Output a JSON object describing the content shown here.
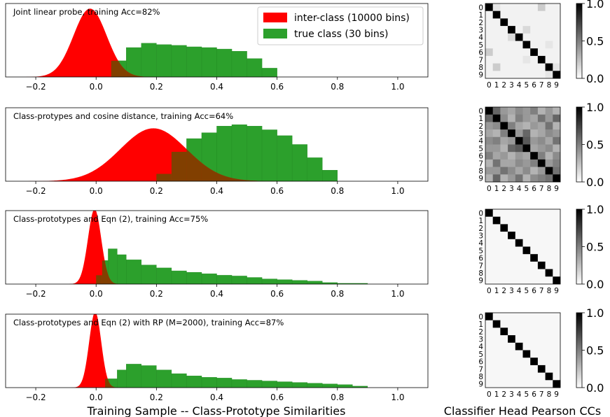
{
  "figure": {
    "left_xlabel": "Training Sample -- Class-Prototype Similarities",
    "right_xlabel": "Classifier Head Pearson CCs"
  },
  "legend": {
    "entries": [
      {
        "label": "inter-class (10000 bins)",
        "color": "#ff0000"
      },
      {
        "label": "true class (30 bins)",
        "color": "#2ca02c"
      }
    ]
  },
  "colors": {
    "inter": "#ff0000",
    "true": "#2ca02c",
    "overlap": "#6b4a00"
  },
  "chart_data": [
    {
      "type": "area",
      "title": "Joint linear probe, training Acc=82%",
      "xlim": [
        -0.3,
        1.1
      ],
      "xticks": [
        -0.2,
        0.0,
        0.2,
        0.4,
        0.6,
        0.8,
        1.0
      ],
      "xtick_labels": [
        "−0.2",
        "0.0",
        "0.2",
        "0.4",
        "0.6",
        "0.8",
        "1.0"
      ],
      "series": [
        {
          "name": "inter-class (10000 bins)",
          "kind": "density",
          "mu": -0.02,
          "sigma": 0.055,
          "peak": 0.93
        },
        {
          "name": "true class (30 bins)",
          "kind": "histogram",
          "bins": [
            0.05,
            0.1,
            0.15,
            0.2,
            0.25,
            0.3,
            0.35,
            0.4,
            0.45,
            0.5,
            0.55,
            0.6
          ],
          "heights": [
            0.22,
            0.4,
            0.46,
            0.44,
            0.43,
            0.41,
            0.4,
            0.38,
            0.35,
            0.25,
            0.12,
            0.03
          ]
        }
      ]
    },
    {
      "type": "area",
      "title": "Class-protypes and cosine distance, training Acc=64%",
      "xlim": [
        -0.3,
        1.1
      ],
      "xticks": [
        -0.2,
        0.0,
        0.2,
        0.4,
        0.6,
        0.8,
        1.0
      ],
      "xtick_labels": [
        "−0.2",
        "0.0",
        "0.2",
        "0.4",
        "0.6",
        "0.8",
        "1.0"
      ],
      "series": [
        {
          "name": "inter-class (10000 bins)",
          "kind": "density",
          "mu": 0.19,
          "sigma": 0.11,
          "peak": 0.72
        },
        {
          "name": "true class (30 bins)",
          "kind": "histogram",
          "bins": [
            0.2,
            0.25,
            0.3,
            0.35,
            0.4,
            0.45,
            0.5,
            0.55,
            0.6,
            0.65,
            0.7,
            0.75,
            0.8
          ],
          "heights": [
            0.1,
            0.4,
            0.58,
            0.66,
            0.75,
            0.77,
            0.75,
            0.7,
            0.62,
            0.5,
            0.32,
            0.15,
            0.05
          ]
        }
      ]
    },
    {
      "type": "area",
      "title": "Class-prototypes and Eqn (2), training Acc=75%",
      "xlim": [
        -0.3,
        1.1
      ],
      "xticks": [
        -0.2,
        0.0,
        0.2,
        0.4,
        0.6,
        0.8,
        1.0
      ],
      "xtick_labels": [
        "−0.2",
        "0.0",
        "0.2",
        "0.4",
        "0.6",
        "0.8",
        "1.0"
      ],
      "series": [
        {
          "name": "inter-class (10000 bins)",
          "kind": "density",
          "mu": -0.005,
          "sigma": 0.022,
          "peak": 1.02
        },
        {
          "name": "true class (30 bins)",
          "kind": "histogram",
          "bins": [
            0,
            0.02,
            0.04,
            0.07,
            0.1,
            0.15,
            0.2,
            0.25,
            0.3,
            0.35,
            0.4,
            0.45,
            0.5,
            0.55,
            0.6,
            0.65,
            0.7,
            0.75,
            0.8,
            0.9
          ],
          "heights": [
            0.12,
            0.32,
            0.48,
            0.4,
            0.33,
            0.26,
            0.22,
            0.18,
            0.16,
            0.14,
            0.12,
            0.11,
            0.09,
            0.07,
            0.06,
            0.05,
            0.04,
            0.02,
            0.01
          ]
        }
      ]
    },
    {
      "type": "area",
      "title": "Class-prototypes and Eqn (2) with RP (M=2000), training Acc=87%",
      "xlim": [
        -0.3,
        1.1
      ],
      "xticks": [
        -0.2,
        0.0,
        0.2,
        0.4,
        0.6,
        0.8,
        1.0
      ],
      "xtick_labels": [
        "−0.2",
        "0.0",
        "0.2",
        "0.4",
        "0.6",
        "0.8",
        "1.0"
      ],
      "series": [
        {
          "name": "inter-class (10000 bins)",
          "kind": "density",
          "mu": -0.003,
          "sigma": 0.02,
          "peak": 1.03
        },
        {
          "name": "true class (30 bins)",
          "kind": "histogram",
          "bins": [
            0.03,
            0.07,
            0.1,
            0.15,
            0.2,
            0.25,
            0.3,
            0.35,
            0.4,
            0.45,
            0.5,
            0.55,
            0.6,
            0.65,
            0.7,
            0.75,
            0.8,
            0.85,
            0.9
          ],
          "heights": [
            0.12,
            0.24,
            0.32,
            0.3,
            0.24,
            0.19,
            0.16,
            0.14,
            0.13,
            0.11,
            0.1,
            0.09,
            0.08,
            0.07,
            0.06,
            0.05,
            0.04,
            0.02
          ]
        }
      ]
    },
    {
      "type": "heatmap",
      "labels": [
        "0",
        "1",
        "2",
        "3",
        "4",
        "5",
        "6",
        "7",
        "8",
        "9"
      ],
      "colorbar_ticks": [
        "0.0",
        "0.5",
        "1.0"
      ],
      "range": [
        0,
        1
      ],
      "offdiag": [
        [
          0.1,
          0.05,
          0.05,
          0.05,
          0.05,
          0.05,
          0.2,
          0.05,
          0.05
        ],
        [
          0.05,
          0.05,
          0.05,
          0.05,
          0.05,
          0.05,
          0.05,
          0.05,
          0.05
        ],
        [
          0.05,
          0.05,
          0.05,
          0.05,
          0.05,
          0.05,
          0.05,
          0.05,
          0.05
        ],
        [
          0.05,
          0.05,
          0.05,
          0.05,
          0.15,
          0.05,
          0.05,
          0.05,
          0.05
        ],
        [
          0.05,
          0.05,
          0.05,
          0.15,
          0.05,
          0.05,
          0.05,
          0.05,
          0.05
        ],
        [
          0.05,
          0.05,
          0.05,
          0.05,
          0.05,
          0.05,
          0.05,
          0.1,
          0.05
        ],
        [
          0.2,
          0.05,
          0.05,
          0.05,
          0.05,
          0.05,
          0.05,
          0.05,
          0.05
        ],
        [
          0.05,
          0.05,
          0.05,
          0.05,
          0.05,
          0.1,
          0.05,
          0.05,
          0.05
        ],
        [
          0.05,
          0.2,
          0.05,
          0.05,
          0.05,
          0.05,
          0.05,
          0.05,
          0.1
        ],
        [
          0.05,
          0.05,
          0.05,
          0.05,
          0.05,
          0.05,
          0.05,
          0.05,
          0.1
        ]
      ]
    },
    {
      "type": "heatmap",
      "labels": [
        "0",
        "1",
        "2",
        "3",
        "4",
        "5",
        "6",
        "7",
        "8",
        "9"
      ],
      "colorbar_ticks": [
        "0.0",
        "0.5",
        "1.0"
      ],
      "range": [
        0,
        1
      ],
      "offdiag": [
        [
          0.6,
          0.4,
          0.35,
          0.45,
          0.4,
          0.5,
          0.3,
          0.4,
          0.3
        ],
        [
          0.6,
          0.45,
          0.3,
          0.5,
          0.4,
          0.35,
          0.55,
          0.4,
          0.6
        ],
        [
          0.4,
          0.45,
          0.5,
          0.35,
          0.3,
          0.4,
          0.35,
          0.55,
          0.3
        ],
        [
          0.35,
          0.3,
          0.5,
          0.4,
          0.6,
          0.3,
          0.35,
          0.45,
          0.4
        ],
        [
          0.45,
          0.5,
          0.35,
          0.4,
          0.65,
          0.4,
          0.45,
          0.35,
          0.55
        ],
        [
          0.4,
          0.4,
          0.3,
          0.6,
          0.65,
          0.35,
          0.4,
          0.45,
          0.3
        ],
        [
          0.5,
          0.35,
          0.4,
          0.3,
          0.4,
          0.35,
          0.5,
          0.3,
          0.45
        ],
        [
          0.3,
          0.55,
          0.35,
          0.35,
          0.45,
          0.4,
          0.5,
          0.4,
          0.5
        ],
        [
          0.4,
          0.4,
          0.55,
          0.45,
          0.35,
          0.45,
          0.3,
          0.4,
          0.55
        ],
        [
          0.3,
          0.6,
          0.3,
          0.4,
          0.55,
          0.3,
          0.45,
          0.5,
          0.55
        ]
      ]
    },
    {
      "type": "heatmap",
      "labels": [
        "0",
        "1",
        "2",
        "3",
        "4",
        "5",
        "6",
        "7",
        "8",
        "9"
      ],
      "colorbar_ticks": [
        "0.0",
        "0.5",
        "1.0"
      ],
      "range": [
        0,
        1
      ],
      "offdiag": [
        [
          0.03,
          0.03,
          0.03,
          0.03,
          0.03,
          0.03,
          0.03,
          0.03,
          0.03
        ],
        [
          0.03,
          0.03,
          0.03,
          0.03,
          0.03,
          0.03,
          0.03,
          0.03,
          0.03
        ],
        [
          0.03,
          0.03,
          0.03,
          0.03,
          0.03,
          0.03,
          0.03,
          0.03,
          0.03
        ],
        [
          0.03,
          0.03,
          0.03,
          0.03,
          0.03,
          0.03,
          0.03,
          0.03,
          0.03
        ],
        [
          0.03,
          0.03,
          0.03,
          0.03,
          0.03,
          0.03,
          0.03,
          0.03,
          0.03
        ],
        [
          0.03,
          0.03,
          0.03,
          0.03,
          0.03,
          0.03,
          0.03,
          0.03,
          0.03
        ],
        [
          0.03,
          0.03,
          0.03,
          0.03,
          0.03,
          0.03,
          0.03,
          0.03,
          0.03
        ],
        [
          0.03,
          0.03,
          0.03,
          0.03,
          0.03,
          0.03,
          0.03,
          0.03,
          0.03
        ],
        [
          0.03,
          0.03,
          0.03,
          0.03,
          0.03,
          0.03,
          0.03,
          0.03,
          0.03
        ],
        [
          0.03,
          0.03,
          0.03,
          0.03,
          0.03,
          0.03,
          0.03,
          0.03,
          0.03
        ]
      ]
    },
    {
      "type": "heatmap",
      "labels": [
        "0",
        "1",
        "2",
        "3",
        "4",
        "5",
        "6",
        "7",
        "8",
        "9"
      ],
      "colorbar_ticks": [
        "0.0",
        "0.5",
        "1.0"
      ],
      "range": [
        0,
        1
      ],
      "offdiag": [
        [
          0.03,
          0.03,
          0.03,
          0.03,
          0.03,
          0.03,
          0.03,
          0.03,
          0.03
        ],
        [
          0.03,
          0.03,
          0.03,
          0.03,
          0.03,
          0.03,
          0.03,
          0.03,
          0.03
        ],
        [
          0.03,
          0.03,
          0.03,
          0.03,
          0.03,
          0.03,
          0.03,
          0.03,
          0.03
        ],
        [
          0.03,
          0.03,
          0.03,
          0.03,
          0.03,
          0.03,
          0.03,
          0.03,
          0.03
        ],
        [
          0.03,
          0.03,
          0.03,
          0.03,
          0.03,
          0.03,
          0.03,
          0.03,
          0.03
        ],
        [
          0.03,
          0.03,
          0.03,
          0.03,
          0.03,
          0.03,
          0.03,
          0.03,
          0.03
        ],
        [
          0.03,
          0.03,
          0.03,
          0.03,
          0.03,
          0.03,
          0.03,
          0.03,
          0.03
        ],
        [
          0.03,
          0.03,
          0.03,
          0.03,
          0.03,
          0.03,
          0.03,
          0.03,
          0.03
        ],
        [
          0.03,
          0.03,
          0.03,
          0.03,
          0.03,
          0.03,
          0.03,
          0.03,
          0.03
        ],
        [
          0.03,
          0.03,
          0.03,
          0.03,
          0.03,
          0.03,
          0.03,
          0.03,
          0.03
        ]
      ]
    }
  ]
}
